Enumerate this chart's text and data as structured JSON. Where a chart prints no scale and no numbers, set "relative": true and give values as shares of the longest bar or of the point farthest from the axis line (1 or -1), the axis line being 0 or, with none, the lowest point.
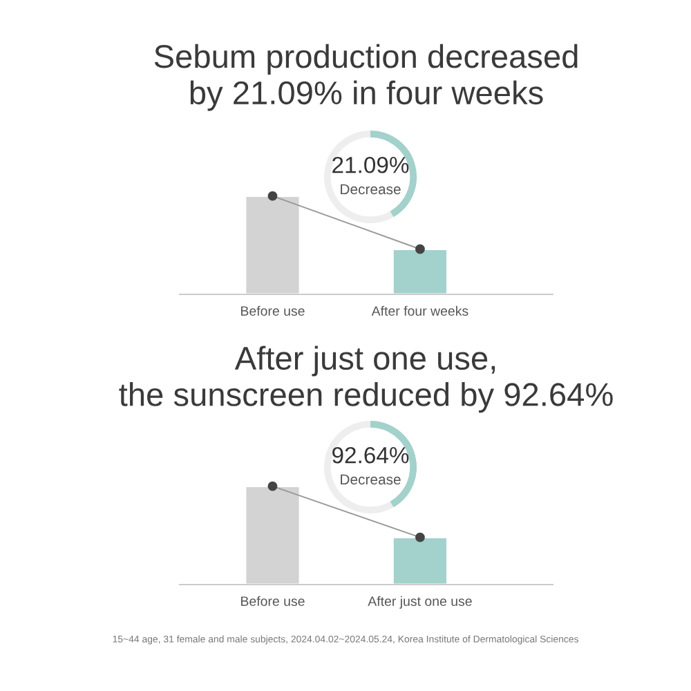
{
  "chart_data": [
    {
      "type": "bar",
      "title": "Sebum production decreased\nby 21.09% in four weeks",
      "categories": [
        "Before use",
        "After four weeks"
      ],
      "relative": true,
      "tick_labels": "x",
      "series": [
        {
          "colors": [
            "#d3d3d3",
            "#a3d1cb"
          ],
          "values": [
            1,
            0.46
          ]
        },
        {
          "type": "line",
          "color": "#444444",
          "marker": "circle",
          "values": [
            1,
            0.46
          ]
        }
      ],
      "annotations": [
        "21.09%",
        "Decrease"
      ]
    },
    {
      "type": "bar",
      "title": "After just one use,\nthe sunscreen reduced by 92.64%",
      "categories": [
        "Before use",
        "After just one use"
      ],
      "relative": true,
      "tick_labels": "x",
      "series": [
        {
          "colors": [
            "#d3d3d3",
            "#a3d1cb"
          ],
          "values": [
            1,
            0.48
          ]
        },
        {
          "type": "line",
          "color": "#444444",
          "marker": "circle",
          "values": [
            1,
            0.48
          ]
        }
      ],
      "annotations": [
        "92.64%",
        "Decrease",
        "15~44 age, 31 female and male subjects, 2024.04.02~2024.05.24, Korea Institute of Dermatological Sciences"
      ]
    }
  ]
}
